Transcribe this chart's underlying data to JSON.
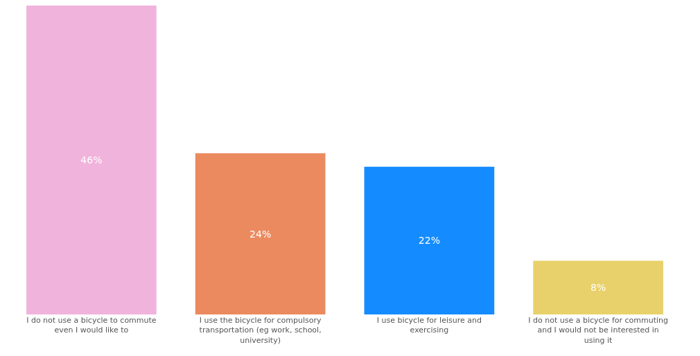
{
  "chart_data": {
    "type": "bar",
    "categories": [
      "I do not use a bicycle to commute even I would like to",
      "I use the bicycle for compulsory transportation (eg work, school, university)",
      "I use bicycle for leisure and exercising",
      "I do not use a bicycle for commuting and I would not be interested in using it"
    ],
    "values": [
      46,
      24,
      22,
      8
    ],
    "colors": [
      "#f0b3dc",
      "#eb8a5f",
      "#148cff",
      "#e8d16a"
    ],
    "value_labels": [
      "46%",
      "24%",
      "22%",
      "8%"
    ],
    "legend": false
  }
}
